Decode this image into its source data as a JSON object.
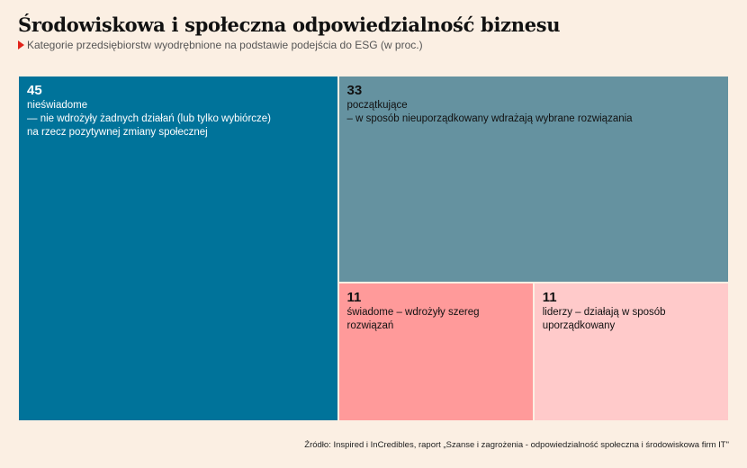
{
  "title": "Środowiskowa i społeczna odpowiedzialność biznesu",
  "subtitle": "Kategorie przedsiębiorstw wyodrębnione na podstawie podejścia do ESG (w proc.)",
  "source": "Źródło: Inspired i InCredibles, raport „Szanse i zagrożenia - odpowiedzialność społeczna i środowiskowa firm IT\"",
  "chart_data": {
    "type": "treemap",
    "unit": "%",
    "items": [
      {
        "value": 45,
        "value_label": "45",
        "name": "nieświadome",
        "description": "— nie wdrożyły żadnych działań (lub tylko wybiórcze)\nna rzecz  pozytywnej zmiany społecznej",
        "color": "#00739a",
        "text_color": "#ffffff"
      },
      {
        "value": 33,
        "value_label": "33",
        "name": "początkujące",
        "description": "– w sposób nieuporządkowany wdrażają wybrane rozwiązania",
        "color": "#6592a0",
        "text_color": "#111111"
      },
      {
        "value": 11,
        "value_label": "11",
        "name": "świadome – wdrożyły szereg rozwiązań",
        "description": "",
        "color": "#ff9a9a",
        "text_color": "#111111"
      },
      {
        "value": 11,
        "value_label": "11",
        "name": "liderzy – działają w sposób uporządkowany",
        "description": "",
        "color": "#ffcaca",
        "text_color": "#111111"
      }
    ]
  }
}
